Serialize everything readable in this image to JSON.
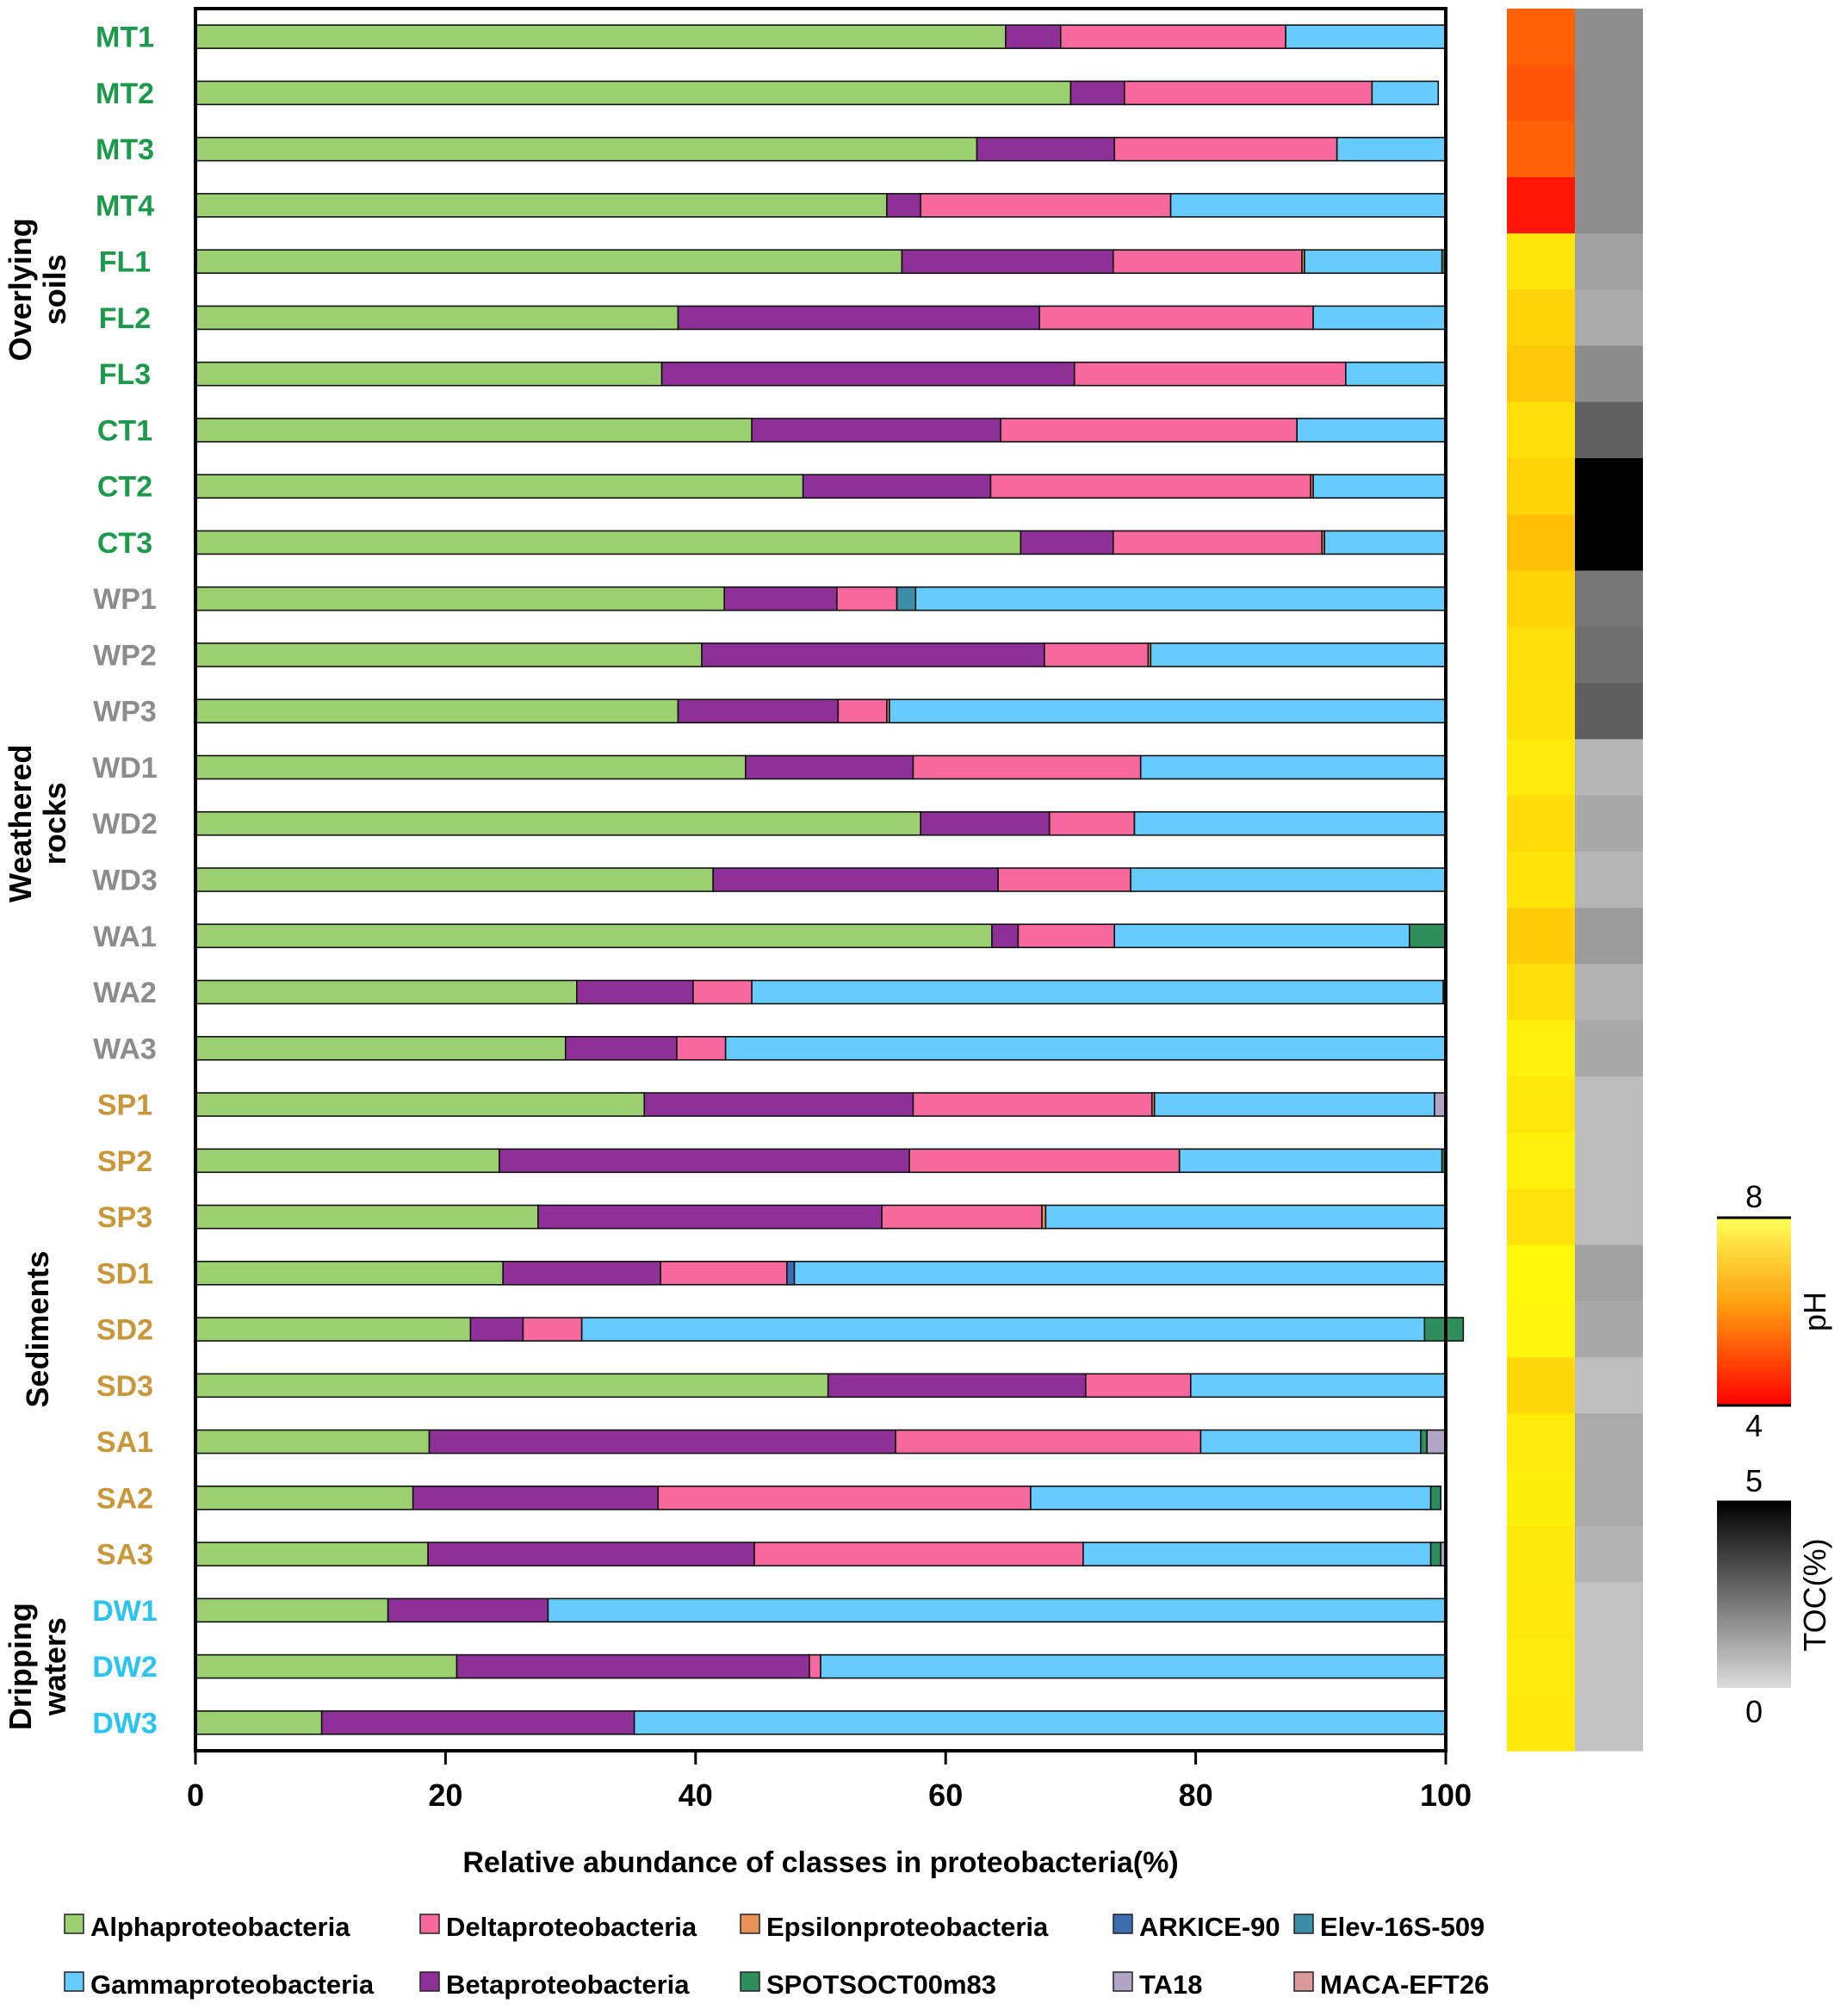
{
  "chart_data": {
    "type": "bar",
    "orientation": "horizontal",
    "stacked": true,
    "xlabel": "Relative abundance of classes in  proteobacteria(%)",
    "xlim": [
      0,
      100
    ],
    "xticks": [
      "0",
      "20",
      "40",
      "60",
      "80",
      "100"
    ],
    "grid": false,
    "legend_position": "bottom",
    "categories": [
      "MT1",
      "MT2",
      "MT3",
      "MT4",
      "FL1",
      "FL2",
      "FL3",
      "CT1",
      "CT2",
      "CT3",
      "WP1",
      "WP2",
      "WP3",
      "WD1",
      "WD2",
      "WD3",
      "WA1",
      "WA2",
      "WA3",
      "SP1",
      "SP2",
      "SP3",
      "SD1",
      "SD2",
      "SD3",
      "SA1",
      "SA2",
      "SA3",
      "DW1",
      "DW2",
      "DW3"
    ],
    "category_colors": [
      "#1a9a4a",
      "#1a9a4a",
      "#1a9a4a",
      "#1a9a4a",
      "#1a9a4a",
      "#1a9a4a",
      "#1a9a4a",
      "#1a9a4a",
      "#1a9a4a",
      "#1a9a4a",
      "#8c8c8c",
      "#8c8c8c",
      "#8c8c8c",
      "#8c8c8c",
      "#8c8c8c",
      "#8c8c8c",
      "#8c8c8c",
      "#8c8c8c",
      "#8c8c8c",
      "#c9973a",
      "#c9973a",
      "#c9973a",
      "#c9973a",
      "#c9973a",
      "#c9973a",
      "#c9973a",
      "#c9973a",
      "#c9973a",
      "#29c4f0",
      "#29c4f0",
      "#29c4f0"
    ],
    "groups": [
      {
        "label": "Overlying soils",
        "lines": [
          "Overlying",
          "soils"
        ],
        "from": 0,
        "to": 9
      },
      {
        "label": "Weathered rocks",
        "lines": [
          "Weathered",
          "rocks"
        ],
        "from": 10,
        "to": 18
      },
      {
        "label": "Sediments",
        "lines": [
          "Sediments"
        ],
        "from": 19,
        "to": 27
      },
      {
        "label": "Dripping waters",
        "lines": [
          "Dripping",
          "waters"
        ],
        "from": 28,
        "to": 30
      }
    ],
    "series": [
      {
        "name": "Alphaproteobacteria",
        "color": "#9bcf6f",
        "values": [
          64.8,
          70.0,
          62.5,
          55.3,
          56.5,
          38.6,
          37.3,
          44.5,
          48.6,
          66.0,
          42.3,
          40.5,
          38.6,
          44.0,
          58.0,
          41.4,
          63.7,
          30.5,
          29.6,
          35.9,
          24.3,
          27.4,
          24.6,
          22.0,
          50.6,
          18.7,
          17.4,
          18.6,
          15.4,
          20.9,
          10.1
        ]
      },
      {
        "name": "Betaproteobacteria",
        "color": "#8e3097",
        "values": [
          4.4,
          4.3,
          11.0,
          2.7,
          16.9,
          28.9,
          33.0,
          19.9,
          15.0,
          7.4,
          9.0,
          27.4,
          12.8,
          13.4,
          10.3,
          22.8,
          2.1,
          9.3,
          8.9,
          21.5,
          32.8,
          27.5,
          12.6,
          4.2,
          20.6,
          37.3,
          19.6,
          26.1,
          12.8,
          28.2,
          25.0
        ]
      },
      {
        "name": "Deltaproteobacteria",
        "color": "#f7689c",
        "values": [
          18.0,
          19.8,
          17.8,
          20.0,
          15.1,
          21.9,
          21.7,
          23.7,
          25.6,
          16.7,
          4.8,
          8.3,
          3.9,
          18.2,
          6.8,
          10.6,
          7.7,
          4.7,
          3.9,
          19.1,
          21.6,
          12.8,
          10.1,
          4.7,
          8.4,
          24.4,
          29.8,
          26.3,
          0,
          0.9,
          0
        ]
      },
      {
        "name": "Epsilonproteobacteria",
        "color": "#e8925a",
        "values": [
          0,
          0,
          0,
          0,
          0.2,
          0,
          0,
          0,
          0.2,
          0.2,
          0,
          0.2,
          0.2,
          0,
          0,
          0,
          0,
          0,
          0,
          0.2,
          0,
          0.3,
          0,
          0,
          0,
          0,
          0,
          0,
          0,
          0,
          0
        ]
      },
      {
        "name": "ARKICE-90",
        "color": "#3d6cb0",
        "values": [
          0,
          0,
          0,
          0,
          0,
          0,
          0,
          0,
          0,
          0,
          0,
          0,
          0,
          0,
          0,
          0,
          0,
          0,
          0,
          0,
          0,
          0,
          0.6,
          0,
          0,
          0,
          0,
          0,
          0,
          0,
          0
        ]
      },
      {
        "name": "Elev-16S-509",
        "color": "#3c8ea8",
        "values": [
          0,
          0,
          0,
          0,
          0,
          0,
          0,
          0,
          0,
          0,
          1.5,
          0,
          0,
          0,
          0,
          0,
          0,
          0,
          0,
          0,
          0,
          0,
          0,
          0,
          0,
          0,
          0,
          0,
          0,
          0,
          0
        ]
      },
      {
        "name": "Gammaproteobacteria",
        "color": "#66ccff",
        "values": [
          12.8,
          5.3,
          8.7,
          22.0,
          11.0,
          10.6,
          8.0,
          11.9,
          10.6,
          9.7,
          42.4,
          23.6,
          44.5,
          24.4,
          24.9,
          25.2,
          23.6,
          55.3,
          57.6,
          22.4,
          21.0,
          32.0,
          52.1,
          67.4,
          20.4,
          17.6,
          32.0,
          27.8,
          71.8,
          50.0,
          64.9
        ]
      },
      {
        "name": "SPOTSOCT00m83",
        "color": "#2e8f5c",
        "values": [
          0,
          0,
          0,
          0,
          0.3,
          0,
          0,
          0,
          0,
          0,
          0,
          0,
          0,
          0,
          0,
          0,
          2.9,
          0.2,
          0,
          0,
          0.3,
          0,
          0,
          3.1,
          0,
          0.5,
          0.8,
          0.8,
          0,
          0,
          0
        ]
      },
      {
        "name": "TA18",
        "color": "#b1a4c7",
        "values": [
          0,
          0,
          0,
          0,
          0,
          0,
          0,
          0,
          0,
          0,
          0,
          0,
          0,
          0,
          0,
          0,
          0,
          0,
          0,
          0.9,
          0,
          0,
          0,
          0,
          0,
          1.5,
          0,
          0.4,
          0,
          0,
          0
        ]
      },
      {
        "name": "MACA-EFT26",
        "color": "#d99a9a",
        "values": [
          0,
          0,
          0,
          0,
          0,
          0,
          0,
          0,
          0,
          0,
          0,
          0,
          0,
          0,
          0,
          0,
          0,
          0,
          0,
          0,
          0,
          0,
          0,
          0,
          0,
          0,
          0,
          0,
          0,
          0,
          0
        ]
      }
    ],
    "heatmap_pH": {
      "scale": [
        4,
        8
      ],
      "label": "pH",
      "tick_labels": [
        "8",
        "4"
      ],
      "colors": [
        "#fe6106",
        "#ff5507",
        "#ff6106",
        "#ff1405",
        "#ffe60a",
        "#ffd209",
        "#ffc809",
        "#ffe009",
        "#ffd409",
        "#ffc209",
        "#ffd30a",
        "#ffe00a",
        "#ffe10a",
        "#ffea0a",
        "#ffdc0a",
        "#ffe40a",
        "#ffcc0a",
        "#ffdf0a",
        "#fff10b",
        "#ffe70a",
        "#fff10b",
        "#ffe20a",
        "#fff80b",
        "#fff40b",
        "#ffd80a",
        "#ffea0a",
        "#fff00b",
        "#ffe90a",
        "#ffe70a",
        "#ffec0a",
        "#ffe70a"
      ]
    },
    "heatmap_TOC": {
      "scale": [
        0,
        5
      ],
      "label": "TOC(%)",
      "tick_labels": [
        "5",
        "0"
      ],
      "colors": [
        "#8e8e8e",
        "#8e8e8e",
        "#8e8e8e",
        "#8e8e8e",
        "#a1a1a1",
        "#ababab",
        "#8c8c8c",
        "#606060",
        "#000000",
        "#000000",
        "#777777",
        "#6e6e6e",
        "#5e5e5e",
        "#b6b6b6",
        "#a9a9a9",
        "#b5b5b5",
        "#9c9c9c",
        "#b1b1b1",
        "#a9a9a9",
        "#bdbdbd",
        "#bcbcbc",
        "#bcbcbc",
        "#a2a2a2",
        "#a9a9a9",
        "#bfbfbf",
        "#aaaaaa",
        "#aaaaaa",
        "#b3b3b3",
        "#c2c2c2",
        "#c3c3c3",
        "#c3c3c3"
      ]
    }
  }
}
